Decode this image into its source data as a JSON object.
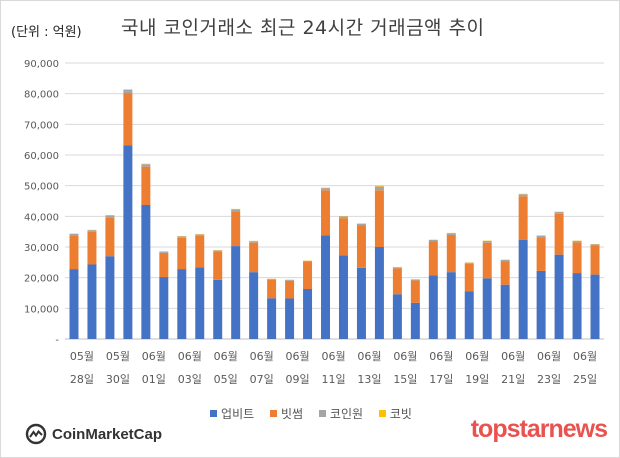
{
  "unit_label": "(단위 : 억원)",
  "chart_data": {
    "type": "bar",
    "stacked": true,
    "title": "국내 코인거래소 최근 24시간 거래금액 추이",
    "xlabel": "",
    "ylabel": "",
    "ylim": [
      0,
      90000
    ],
    "yticks": [
      {
        "value": 0,
        "label": "-"
      },
      {
        "value": 10000,
        "label": "10,000"
      },
      {
        "value": 20000,
        "label": "20,000"
      },
      {
        "value": 30000,
        "label": "30,000"
      },
      {
        "value": 40000,
        "label": "40,000"
      },
      {
        "value": 50000,
        "label": "50,000"
      },
      {
        "value": 60000,
        "label": "60,000"
      },
      {
        "value": 70000,
        "label": "70,000"
      },
      {
        "value": 80000,
        "label": "80,000"
      },
      {
        "value": 90000,
        "label": "90,000"
      }
    ],
    "grid": true,
    "legend_position": "bottom",
    "categories": [
      "05/28",
      "05/29",
      "05/30",
      "05/31",
      "06/01",
      "06/02",
      "06/03",
      "06/04",
      "06/05",
      "06/06",
      "06/07",
      "06/08",
      "06/09",
      "06/10",
      "06/11",
      "06/12",
      "06/13",
      "06/14",
      "06/15",
      "06/16",
      "06/17",
      "06/18",
      "06/19",
      "06/20",
      "06/21",
      "06/22",
      "06/23",
      "06/24",
      "06/25",
      "06/26"
    ],
    "x_tick_labels": [
      {
        "index": 0,
        "month": "05월",
        "day": "28일"
      },
      {
        "index": 2,
        "month": "05월",
        "day": "30일"
      },
      {
        "index": 4,
        "month": "06월",
        "day": "01일"
      },
      {
        "index": 6,
        "month": "06월",
        "day": "03일"
      },
      {
        "index": 8,
        "month": "06월",
        "day": "05일"
      },
      {
        "index": 10,
        "month": "06월",
        "day": "07일"
      },
      {
        "index": 12,
        "month": "06월",
        "day": "09일"
      },
      {
        "index": 14,
        "month": "06월",
        "day": "11일"
      },
      {
        "index": 16,
        "month": "06월",
        "day": "13일"
      },
      {
        "index": 18,
        "month": "06월",
        "day": "15일"
      },
      {
        "index": 20,
        "month": "06월",
        "day": "17일"
      },
      {
        "index": 22,
        "month": "06월",
        "day": "19일"
      },
      {
        "index": 24,
        "month": "06월",
        "day": "21일"
      },
      {
        "index": 26,
        "month": "06월",
        "day": "23일"
      },
      {
        "index": 28,
        "month": "06월",
        "day": "25일"
      }
    ],
    "series": [
      {
        "name": "업비트",
        "color": "#4472c4",
        "values": [
          22800,
          24300,
          27000,
          63200,
          43700,
          20200,
          22800,
          23300,
          19300,
          30300,
          21800,
          13300,
          13200,
          16300,
          33800,
          27300,
          23200,
          30000,
          14600,
          11800,
          20800,
          21800,
          15500,
          19800,
          17700,
          32300,
          22200,
          27500,
          21500,
          21000
        ]
      },
      {
        "name": "빗썸",
        "color": "#ed7d31",
        "values": [
          11000,
          10700,
          12700,
          17000,
          12500,
          7900,
          10200,
          10300,
          9200,
          11300,
          9600,
          6000,
          5800,
          8800,
          14700,
          12100,
          13800,
          18500,
          8500,
          7300,
          11000,
          12100,
          9000,
          11600,
          7700,
          14200,
          11000,
          13300,
          10000,
          9500
        ]
      },
      {
        "name": "코인원",
        "color": "#a5a5a5",
        "values": [
          500,
          500,
          600,
          1000,
          800,
          400,
          500,
          500,
          400,
          700,
          500,
          300,
          300,
          400,
          700,
          600,
          600,
          1200,
          300,
          300,
          500,
          600,
          400,
          600,
          400,
          700,
          500,
          600,
          500,
          400
        ]
      },
      {
        "name": "코빗",
        "color": "#ffc000",
        "values": [
          100,
          100,
          100,
          200,
          150,
          80,
          100,
          100,
          80,
          120,
          100,
          50,
          50,
          80,
          150,
          100,
          100,
          300,
          50,
          50,
          100,
          100,
          80,
          100,
          80,
          150,
          100,
          120,
          100,
          80
        ]
      }
    ]
  },
  "brand_left": {
    "text": "CoinMarketCap",
    "logo_color": "#333333"
  },
  "brand_right": {
    "text": "topstarnews",
    "color": "#e8524f"
  }
}
